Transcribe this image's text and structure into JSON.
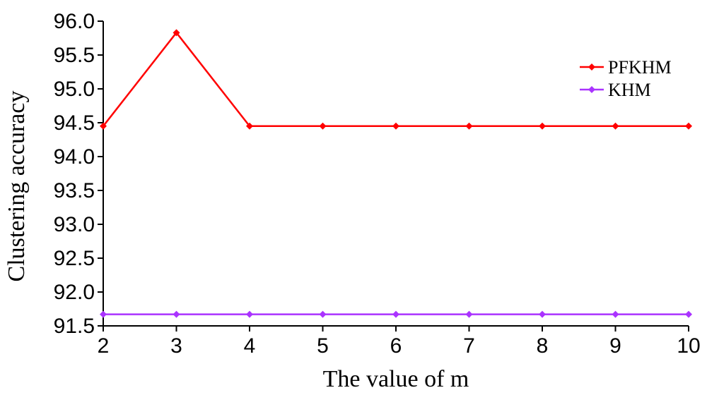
{
  "chart_data": {
    "type": "line",
    "x": [
      2,
      3,
      4,
      5,
      6,
      7,
      8,
      9,
      10
    ],
    "xlabel": "The value of m",
    "ylabel": "Clustering accuracy",
    "xlim": [
      2,
      10
    ],
    "ylim": [
      91.5,
      96.0
    ],
    "x_ticks": [
      "2",
      "3",
      "4",
      "5",
      "6",
      "7",
      "8",
      "9",
      "10"
    ],
    "y_ticks": [
      "91.5",
      "92.0",
      "92.5",
      "93.0",
      "93.5",
      "94.0",
      "94.5",
      "95.0",
      "95.5",
      "96.0"
    ],
    "grid": false,
    "legend": "top-right",
    "series": [
      {
        "name": "PFKHM",
        "color": "#ff0000",
        "marker": "diamond",
        "values": [
          94.45,
          95.83,
          94.45,
          94.45,
          94.45,
          94.45,
          94.45,
          94.45,
          94.45
        ]
      },
      {
        "name": "KHM",
        "color": "#aa33ff",
        "marker": "diamond",
        "values": [
          91.67,
          91.67,
          91.67,
          91.67,
          91.67,
          91.67,
          91.67,
          91.67,
          91.67
        ]
      }
    ]
  }
}
